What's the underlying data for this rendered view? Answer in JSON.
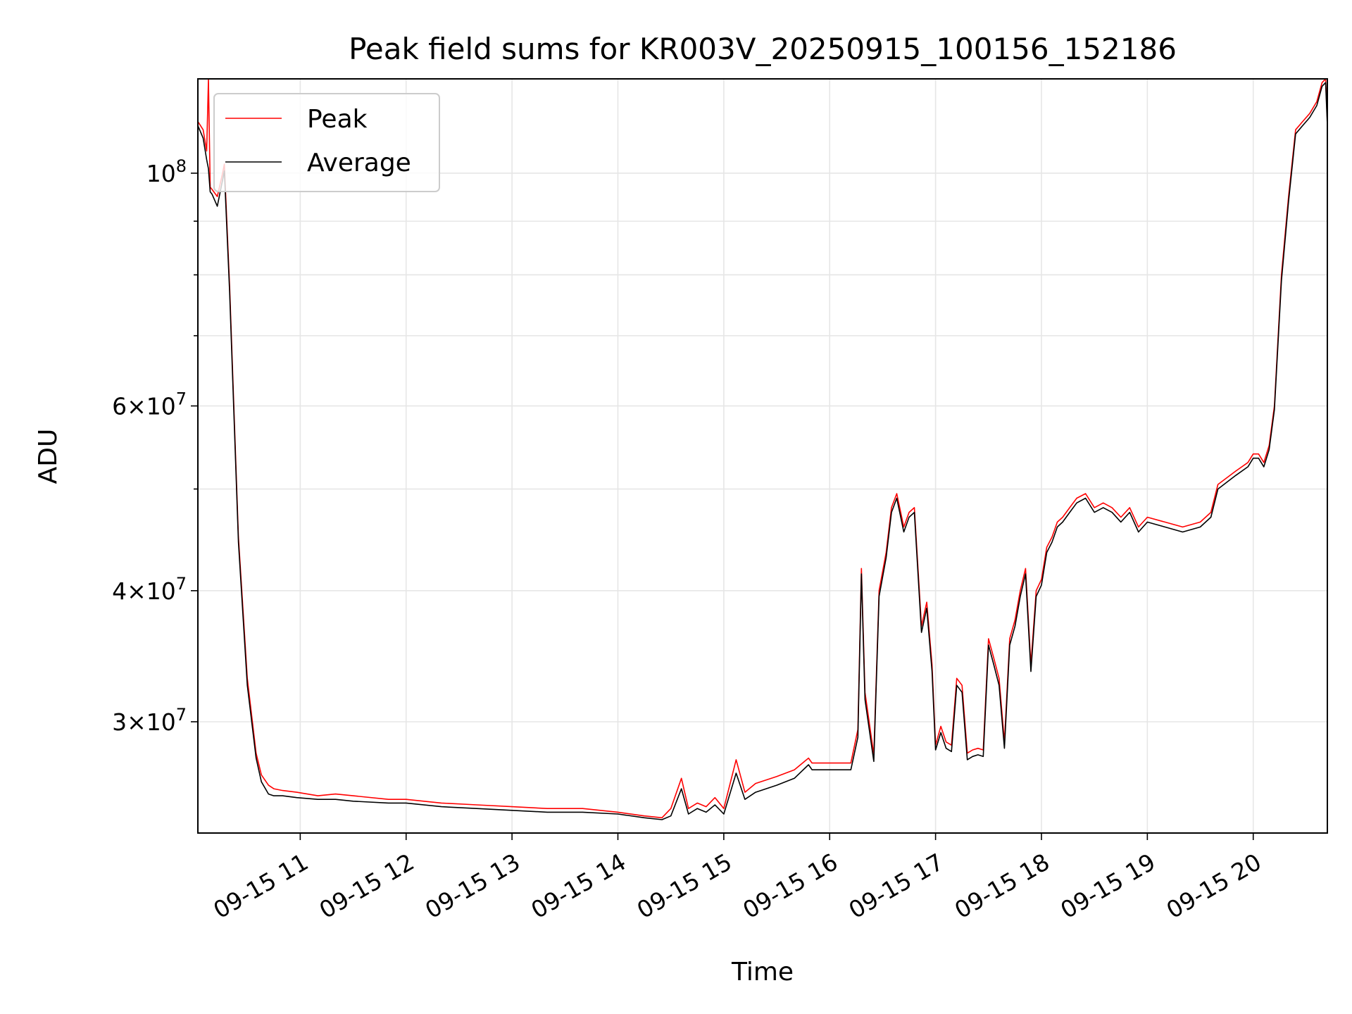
{
  "chart_data": {
    "type": "line",
    "title": "Peak field sums for KR003V_20250915_100156_152186",
    "xlabel": "Time",
    "ylabel": "ADU",
    "yscale": "log",
    "grid": true,
    "legend_position": "top-left",
    "xlim": [
      "2025-09-15T10:02",
      "2025-09-15T20:42"
    ],
    "ylim": [
      23500000,
      123000000
    ],
    "x_ticks": [
      {
        "time": "2025-09-15T11:00",
        "label": "09-15 11"
      },
      {
        "time": "2025-09-15T12:00",
        "label": "09-15 12"
      },
      {
        "time": "2025-09-15T13:00",
        "label": "09-15 13"
      },
      {
        "time": "2025-09-15T14:00",
        "label": "09-15 14"
      },
      {
        "time": "2025-09-15T15:00",
        "label": "09-15 15"
      },
      {
        "time": "2025-09-15T16:00",
        "label": "09-15 16"
      },
      {
        "time": "2025-09-15T17:00",
        "label": "09-15 17"
      },
      {
        "time": "2025-09-15T18:00",
        "label": "09-15 18"
      },
      {
        "time": "2025-09-15T19:00",
        "label": "09-15 19"
      },
      {
        "time": "2025-09-15T20:00",
        "label": "09-15 20"
      }
    ],
    "y_ticks_major": [
      {
        "value": 30000000,
        "mantissa": "3",
        "exponent": "7"
      },
      {
        "value": 40000000,
        "mantissa": "4",
        "exponent": "7"
      },
      {
        "value": 60000000,
        "mantissa": "6",
        "exponent": "7"
      },
      {
        "value": 100000000,
        "mantissa": "",
        "exponent": "8"
      }
    ],
    "y_ticks_minor": [
      50000000,
      70000000,
      80000000,
      90000000
    ],
    "series": [
      {
        "name": "Peak",
        "color": "#ff0000",
        "x": [
          "2025-09-15T10:02",
          "2025-09-15T10:05",
          "2025-09-15T10:07",
          "2025-09-15T10:08",
          "2025-09-15T10:09",
          "2025-09-15T10:10",
          "2025-09-15T10:13",
          "2025-09-15T10:16",
          "2025-09-15T10:17",
          "2025-09-15T10:20",
          "2025-09-15T10:25",
          "2025-09-15T10:30",
          "2025-09-15T10:35",
          "2025-09-15T10:38",
          "2025-09-15T10:42",
          "2025-09-15T10:45",
          "2025-09-15T10:50",
          "2025-09-15T10:58",
          "2025-09-15T11:10",
          "2025-09-15T11:20",
          "2025-09-15T11:30",
          "2025-09-15T11:50",
          "2025-09-15T12:00",
          "2025-09-15T12:20",
          "2025-09-15T12:40",
          "2025-09-15T13:00",
          "2025-09-15T13:20",
          "2025-09-15T13:40",
          "2025-09-15T14:00",
          "2025-09-15T14:15",
          "2025-09-15T14:25",
          "2025-09-15T14:30",
          "2025-09-15T14:36",
          "2025-09-15T14:40",
          "2025-09-15T14:45",
          "2025-09-15T14:50",
          "2025-09-15T14:55",
          "2025-09-15T15:00",
          "2025-09-15T15:07",
          "2025-09-15T15:12",
          "2025-09-15T15:18",
          "2025-09-15T15:30",
          "2025-09-15T15:40",
          "2025-09-15T15:48",
          "2025-09-15T15:50",
          "2025-09-15T16:00",
          "2025-09-15T16:12",
          "2025-09-15T16:16",
          "2025-09-15T16:18",
          "2025-09-15T16:20",
          "2025-09-15T16:25",
          "2025-09-15T16:28",
          "2025-09-15T16:32",
          "2025-09-15T16:35",
          "2025-09-15T16:38",
          "2025-09-15T16:42",
          "2025-09-15T16:45",
          "2025-09-15T16:48",
          "2025-09-15T16:52",
          "2025-09-15T16:55",
          "2025-09-15T16:58",
          "2025-09-15T17:00",
          "2025-09-15T17:03",
          "2025-09-15T17:06",
          "2025-09-15T17:09",
          "2025-09-15T17:12",
          "2025-09-15T17:15",
          "2025-09-15T17:18",
          "2025-09-15T17:21",
          "2025-09-15T17:24",
          "2025-09-15T17:27",
          "2025-09-15T17:30",
          "2025-09-15T17:33",
          "2025-09-15T17:36",
          "2025-09-15T17:39",
          "2025-09-15T17:42",
          "2025-09-15T17:45",
          "2025-09-15T17:48",
          "2025-09-15T17:51",
          "2025-09-15T17:54",
          "2025-09-15T17:57",
          "2025-09-15T18:00",
          "2025-09-15T18:03",
          "2025-09-15T18:06",
          "2025-09-15T18:09",
          "2025-09-15T18:12",
          "2025-09-15T18:16",
          "2025-09-15T18:20",
          "2025-09-15T18:25",
          "2025-09-15T18:30",
          "2025-09-15T18:35",
          "2025-09-15T18:40",
          "2025-09-15T18:45",
          "2025-09-15T18:50",
          "2025-09-15T18:55",
          "2025-09-15T19:00",
          "2025-09-15T19:10",
          "2025-09-15T19:20",
          "2025-09-15T19:30",
          "2025-09-15T19:36",
          "2025-09-15T19:40",
          "2025-09-15T19:50",
          "2025-09-15T19:57",
          "2025-09-15T20:00",
          "2025-09-15T20:03",
          "2025-09-15T20:06",
          "2025-09-15T20:09",
          "2025-09-15T20:12",
          "2025-09-15T20:16",
          "2025-09-15T20:20",
          "2025-09-15T20:24",
          "2025-09-15T20:28",
          "2025-09-15T20:32",
          "2025-09-15T20:36",
          "2025-09-15T20:39",
          "2025-09-15T20:41",
          "2025-09-15T20:42"
        ],
        "y": [
          112000000,
          110000000,
          105000000,
          123000000,
          97000000,
          96500000,
          95000000,
          100000000,
          102000000,
          78000000,
          45000000,
          33000000,
          28000000,
          26700000,
          26100000,
          25900000,
          25800000,
          25700000,
          25500000,
          25600000,
          25500000,
          25300000,
          25300000,
          25100000,
          25000000,
          24900000,
          24800000,
          24800000,
          24600000,
          24400000,
          24300000,
          24800000,
          26500000,
          24800000,
          25100000,
          24900000,
          25400000,
          24800000,
          27600000,
          25700000,
          26200000,
          26600000,
          27000000,
          27700000,
          27400000,
          27400000,
          27400000,
          29500000,
          42000000,
          32000000,
          27900000,
          40000000,
          43500000,
          48000000,
          49500000,
          46000000,
          47500000,
          48000000,
          37000000,
          39000000,
          34000000,
          28500000,
          29700000,
          28700000,
          28500000,
          33000000,
          32500000,
          28000000,
          28200000,
          28300000,
          28200000,
          36000000,
          34500000,
          33000000,
          28700000,
          36000000,
          37500000,
          40000000,
          42000000,
          34000000,
          40000000,
          41000000,
          44000000,
          45000000,
          46500000,
          47000000,
          48000000,
          49000000,
          49500000,
          48000000,
          48500000,
          48000000,
          47000000,
          48000000,
          46000000,
          47000000,
          46500000,
          46000000,
          46500000,
          47500000,
          50500000,
          52000000,
          53000000,
          54000000,
          54000000,
          53000000,
          55000000,
          60000000,
          80000000,
          95000000,
          110000000,
          112000000,
          114000000,
          117000000,
          122000000,
          123000000,
          112000000
        ]
      },
      {
        "name": "Average",
        "color": "#000000",
        "x": [
          "2025-09-15T10:02",
          "2025-09-15T10:05",
          "2025-09-15T10:07",
          "2025-09-15T10:08",
          "2025-09-15T10:09",
          "2025-09-15T10:10",
          "2025-09-15T10:13",
          "2025-09-15T10:16",
          "2025-09-15T10:17",
          "2025-09-15T10:20",
          "2025-09-15T10:25",
          "2025-09-15T10:30",
          "2025-09-15T10:35",
          "2025-09-15T10:38",
          "2025-09-15T10:42",
          "2025-09-15T10:45",
          "2025-09-15T10:50",
          "2025-09-15T10:58",
          "2025-09-15T11:10",
          "2025-09-15T11:20",
          "2025-09-15T11:30",
          "2025-09-15T11:50",
          "2025-09-15T12:00",
          "2025-09-15T12:20",
          "2025-09-15T12:40",
          "2025-09-15T13:00",
          "2025-09-15T13:20",
          "2025-09-15T13:40",
          "2025-09-15T14:00",
          "2025-09-15T14:15",
          "2025-09-15T14:25",
          "2025-09-15T14:30",
          "2025-09-15T14:36",
          "2025-09-15T14:40",
          "2025-09-15T14:45",
          "2025-09-15T14:50",
          "2025-09-15T14:55",
          "2025-09-15T15:00",
          "2025-09-15T15:07",
          "2025-09-15T15:12",
          "2025-09-15T15:18",
          "2025-09-15T15:30",
          "2025-09-15T15:40",
          "2025-09-15T15:48",
          "2025-09-15T15:50",
          "2025-09-15T16:00",
          "2025-09-15T16:12",
          "2025-09-15T16:16",
          "2025-09-15T16:18",
          "2025-09-15T16:20",
          "2025-09-15T16:25",
          "2025-09-15T16:28",
          "2025-09-15T16:32",
          "2025-09-15T16:35",
          "2025-09-15T16:38",
          "2025-09-15T16:42",
          "2025-09-15T16:45",
          "2025-09-15T16:48",
          "2025-09-15T16:52",
          "2025-09-15T16:55",
          "2025-09-15T16:58",
          "2025-09-15T17:00",
          "2025-09-15T17:03",
          "2025-09-15T17:06",
          "2025-09-15T17:09",
          "2025-09-15T17:12",
          "2025-09-15T17:15",
          "2025-09-15T17:18",
          "2025-09-15T17:21",
          "2025-09-15T17:24",
          "2025-09-15T17:27",
          "2025-09-15T17:30",
          "2025-09-15T17:33",
          "2025-09-15T17:36",
          "2025-09-15T17:39",
          "2025-09-15T17:42",
          "2025-09-15T17:45",
          "2025-09-15T17:48",
          "2025-09-15T17:51",
          "2025-09-15T17:54",
          "2025-09-15T17:57",
          "2025-09-15T18:00",
          "2025-09-15T18:03",
          "2025-09-15T18:06",
          "2025-09-15T18:09",
          "2025-09-15T18:12",
          "2025-09-15T18:16",
          "2025-09-15T18:20",
          "2025-09-15T18:25",
          "2025-09-15T18:30",
          "2025-09-15T18:35",
          "2025-09-15T18:40",
          "2025-09-15T18:45",
          "2025-09-15T18:50",
          "2025-09-15T18:55",
          "2025-09-15T19:00",
          "2025-09-15T19:10",
          "2025-09-15T19:20",
          "2025-09-15T19:30",
          "2025-09-15T19:36",
          "2025-09-15T19:40",
          "2025-09-15T19:50",
          "2025-09-15T19:57",
          "2025-09-15T20:00",
          "2025-09-15T20:03",
          "2025-09-15T20:06",
          "2025-09-15T20:09",
          "2025-09-15T20:12",
          "2025-09-15T20:16",
          "2025-09-15T20:20",
          "2025-09-15T20:24",
          "2025-09-15T20:28",
          "2025-09-15T20:32",
          "2025-09-15T20:36",
          "2025-09-15T20:39",
          "2025-09-15T20:41",
          "2025-09-15T20:42"
        ],
        "y": [
          111000000,
          108000000,
          103000000,
          101000000,
          96000000,
          95500000,
          93000000,
          98500000,
          100500000,
          77000000,
          44500000,
          32500000,
          27700000,
          26300000,
          25600000,
          25500000,
          25500000,
          25400000,
          25300000,
          25300000,
          25200000,
          25100000,
          25100000,
          24900000,
          24800000,
          24700000,
          24600000,
          24600000,
          24500000,
          24300000,
          24200000,
          24400000,
          25900000,
          24500000,
          24800000,
          24600000,
          25000000,
          24500000,
          26800000,
          25300000,
          25700000,
          26100000,
          26500000,
          27300000,
          27000000,
          27000000,
          27000000,
          29000000,
          41500000,
          31500000,
          27500000,
          39500000,
          43000000,
          47500000,
          49000000,
          45500000,
          47000000,
          47500000,
          36500000,
          38500000,
          33500000,
          28200000,
          29300000,
          28300000,
          28100000,
          32500000,
          32000000,
          27600000,
          27800000,
          27900000,
          27800000,
          35500000,
          34000000,
          32500000,
          28300000,
          35500000,
          37000000,
          39500000,
          41500000,
          33500000,
          39500000,
          40500000,
          43500000,
          44500000,
          46000000,
          46500000,
          47500000,
          48500000,
          49000000,
          47500000,
          48000000,
          47500000,
          46500000,
          47500000,
          45500000,
          46500000,
          46000000,
          45500000,
          46000000,
          47000000,
          50000000,
          51500000,
          52500000,
          53500000,
          53500000,
          52500000,
          54500000,
          59500000,
          79000000,
          94000000,
          109000000,
          111000000,
          113000000,
          116000000,
          121000000,
          122000000,
          111000000
        ]
      }
    ]
  }
}
